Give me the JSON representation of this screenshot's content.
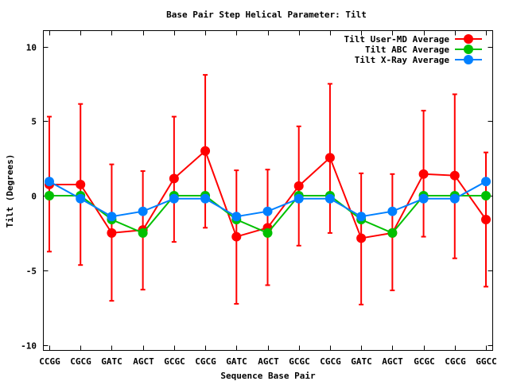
{
  "chart_data": {
    "type": "line",
    "title": "Base Pair Step Helical Parameter: Tilt",
    "xlabel": "Sequence Base Pair",
    "ylabel": "Tilt (Degrees)",
    "ylim": [
      -11,
      11
    ],
    "yticks": [
      -10,
      -5,
      0,
      5,
      10
    ],
    "ytick_labels": [
      "-10",
      "-5",
      "0",
      "5",
      "10"
    ],
    "grid": false,
    "legend_position": "top-right",
    "categories": [
      "CCGG",
      "CGCG",
      "GATC",
      "AGCT",
      "GCGC",
      "CGCG",
      "GATC",
      "AGCT",
      "GCGC",
      "CGCG",
      "GATC",
      "AGCT",
      "GCGC",
      "CGCG",
      "GGCC"
    ],
    "series": [
      {
        "name": "Tilt User-MD Average",
        "color": "#ff0000",
        "values": [
          0.75,
          0.75,
          -2.5,
          -2.3,
          1.15,
          3.0,
          -2.75,
          -2.15,
          0.65,
          2.55,
          -2.85,
          -2.5,
          1.45,
          1.35,
          -1.6
        ],
        "error_high": [
          5.3,
          6.15,
          2.1,
          1.65,
          5.3,
          8.1,
          1.7,
          1.75,
          4.65,
          7.5,
          1.5,
          1.45,
          5.7,
          6.8,
          2.9
        ],
        "error_low": [
          -3.75,
          -4.65,
          -7.05,
          -6.3,
          -3.1,
          -2.15,
          -7.25,
          -6.0,
          -3.35,
          -2.5,
          -7.3,
          -6.35,
          -2.75,
          -4.2,
          -6.1
        ]
      },
      {
        "name": "Tilt ABC Average",
        "color": "#00c000",
        "values": [
          0,
          0,
          -1.6,
          -2.5,
          0,
          0,
          -1.6,
          -2.5,
          0,
          0,
          -1.6,
          -2.5,
          0,
          0,
          0
        ]
      },
      {
        "name": "Tilt X-Ray Average",
        "color": "#0080ff",
        "values": [
          0.95,
          -0.2,
          -1.4,
          -1.05,
          -0.2,
          -0.2,
          -1.4,
          -1.05,
          -0.2,
          -0.2,
          -1.4,
          -1.05,
          -0.2,
          -0.2,
          0.95
        ]
      }
    ]
  }
}
